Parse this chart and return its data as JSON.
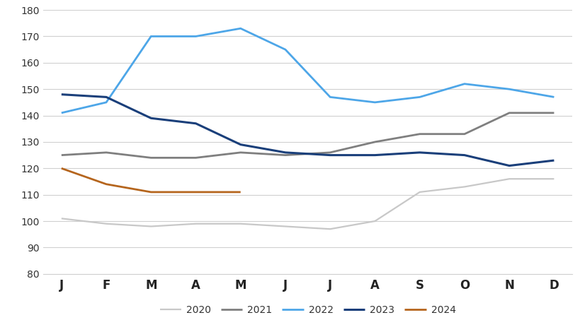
{
  "months": [
    "J",
    "F",
    "M",
    "A",
    "M",
    "J",
    "J",
    "A",
    "S",
    "O",
    "N",
    "D"
  ],
  "series": {
    "2020": [
      101,
      99,
      98,
      99,
      99,
      98,
      97,
      100,
      111,
      113,
      116,
      116
    ],
    "2021": [
      125,
      126,
      124,
      124,
      126,
      125,
      126,
      130,
      133,
      133,
      141,
      141
    ],
    "2022": [
      141,
      145,
      170,
      170,
      173,
      165,
      147,
      145,
      147,
      152,
      150,
      147
    ],
    "2023": [
      148,
      147,
      139,
      137,
      129,
      126,
      125,
      125,
      126,
      125,
      121,
      123
    ],
    "2024": [
      120,
      114,
      111,
      111,
      111,
      null,
      null,
      null,
      null,
      null,
      null,
      null
    ]
  },
  "colors": {
    "2020": "#c8c8c8",
    "2021": "#7f7f7f",
    "2022": "#4da6e8",
    "2023": "#1a3f7a",
    "2024": "#b5651d"
  },
  "line_widths": {
    "2020": 1.6,
    "2021": 2.0,
    "2022": 2.0,
    "2023": 2.2,
    "2024": 2.0
  },
  "ylim": [
    80,
    180
  ],
  "yticks": [
    80,
    90,
    100,
    110,
    120,
    130,
    140,
    150,
    160,
    170,
    180
  ],
  "background_color": "#ffffff",
  "grid_color": "#d0d0d0",
  "legend_order": [
    "2020",
    "2021",
    "2022",
    "2023",
    "2024"
  ]
}
